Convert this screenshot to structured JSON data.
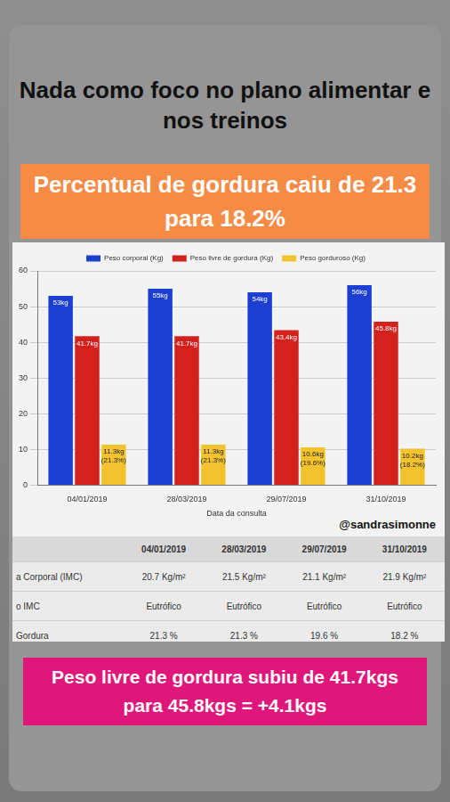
{
  "header": {
    "title": "Nada como foco no plano alimentar e nos treinos",
    "highlight": "Percentual de gordura caiu de 21.3 para 18.2%"
  },
  "chart_data": {
    "type": "bar",
    "categories": [
      "04/01/2019",
      "28/03/2019",
      "29/07/2019",
      "31/10/2019"
    ],
    "x_label": "Data da consulta",
    "series": [
      {
        "name": "Peso corporal (Kg)",
        "color": "#1b3fd0",
        "values": [
          53,
          55,
          54,
          56
        ],
        "value_labels": [
          "53kg",
          "55kg",
          "54kg",
          "56kg"
        ]
      },
      {
        "name": "Peso livre de gordura (Kg)",
        "color": "#d3211d",
        "values": [
          41.7,
          41.7,
          43.4,
          45.8
        ],
        "value_labels": [
          "41.7kg",
          "41.7kg",
          "43.4kg",
          "45.8kg"
        ]
      },
      {
        "name": "Peso gorduroso (Kg)",
        "color": "#f3c22f",
        "values": [
          11.3,
          11.3,
          10.6,
          10.2
        ],
        "value_labels": [
          "11.3kg (21.3%)",
          "11.3kg (21.3%)",
          "10.6kg (19.6%)",
          "10.2kg (18.2%)"
        ]
      }
    ],
    "ylim": [
      0,
      60
    ],
    "yticks": [
      0,
      10,
      20,
      30,
      40,
      50,
      60
    ],
    "grid": true,
    "legend": "top",
    "data_labels": true,
    "annotations": [
      "@sandrasimonne"
    ]
  },
  "table": {
    "columns": [
      "04/01/2019",
      "28/03/2019",
      "29/07/2019",
      "31/10/2019"
    ],
    "rows": [
      {
        "label": "a Corporal (IMC)",
        "cells": [
          "20.7 Kg/m²",
          "21.5 Kg/m²",
          "21.1 Kg/m²",
          "21.9 Kg/m²"
        ]
      },
      {
        "label": "o IMC",
        "cells": [
          "Eutrófico",
          "Eutrófico",
          "Eutrófico",
          "Eutrófico"
        ]
      },
      {
        "label": "Gordura",
        "cells": [
          "21.3 %",
          "21.3 %",
          "19.6 %",
          "18.2 %"
        ]
      }
    ]
  },
  "footer": "Peso livre de gordura subiu de 41.7kgs para 45.8kgs = +4.1kgs"
}
